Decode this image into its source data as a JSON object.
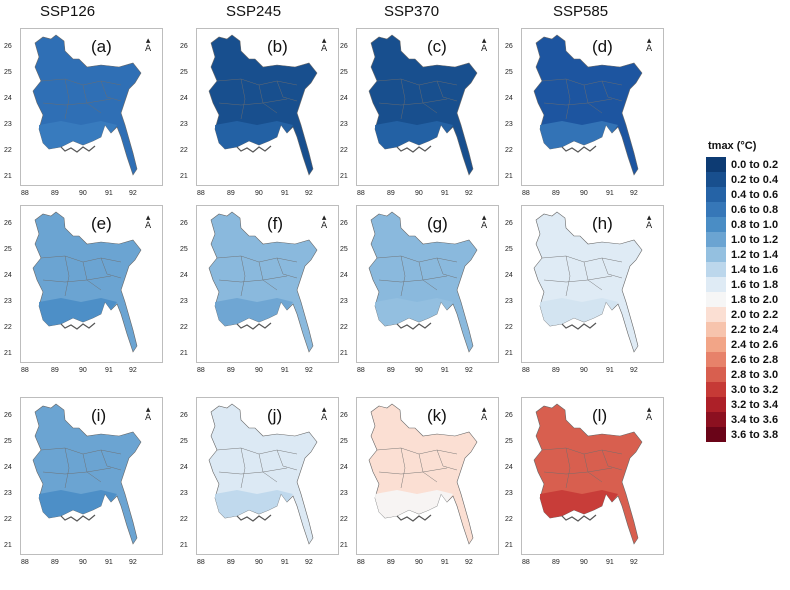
{
  "columns": [
    "SSP126",
    "SSP245",
    "SSP370",
    "SSP585"
  ],
  "y_ticks": [
    "26",
    "25",
    "24",
    "23",
    "22",
    "21"
  ],
  "x_ticks": [
    "88",
    "89",
    "90",
    "91",
    "92"
  ],
  "north_arrow": "A",
  "legend": {
    "title": "tmax (°C)",
    "entries": [
      {
        "label": "0.0 to 0.2",
        "color": "#0d3b73"
      },
      {
        "label": "0.2 to 0.4",
        "color": "#184f8e"
      },
      {
        "label": "0.4 to 0.6",
        "color": "#2563a6"
      },
      {
        "label": "0.6 to 0.8",
        "color": "#3677b8"
      },
      {
        "label": "0.8 to 1.0",
        "color": "#4a8dc5"
      },
      {
        "label": "1.0 to 1.2",
        "color": "#6ba4d2"
      },
      {
        "label": "1.2 to 1.4",
        "color": "#94c0e0"
      },
      {
        "label": "1.4 to 1.6",
        "color": "#bcd7ec"
      },
      {
        "label": "1.6 to 1.8",
        "color": "#dfebf5"
      },
      {
        "label": "1.8 to 2.0",
        "color": "#f6f6f6"
      },
      {
        "label": "2.0 to 2.2",
        "color": "#fbdfd3"
      },
      {
        "label": "2.2 to 2.4",
        "color": "#f7c4ad"
      },
      {
        "label": "2.4 to 2.6",
        "color": "#f2a587"
      },
      {
        "label": "2.6 to 2.8",
        "color": "#e7826a"
      },
      {
        "label": "2.8 to 3.0",
        "color": "#d85f4f"
      },
      {
        "label": "3.0 to 3.2",
        "color": "#c63a36"
      },
      {
        "label": "3.2 to 3.4",
        "color": "#ad2028"
      },
      {
        "label": "3.4 to 3.6",
        "color": "#8c1020"
      },
      {
        "label": "3.6 to 3.8",
        "color": "#6a0418"
      }
    ]
  },
  "panels": [
    {
      "label": "(a)",
      "scenario": "SSP126",
      "fill": "#2f6fb5",
      "south": "#3a7cbf"
    },
    {
      "label": "(b)",
      "scenario": "SSP245",
      "fill": "#184f8e",
      "south": "#2563a6"
    },
    {
      "label": "(c)",
      "scenario": "SSP370",
      "fill": "#184f8e",
      "south": "#2563a6"
    },
    {
      "label": "(d)",
      "scenario": "SSP585",
      "fill": "#1d55a0",
      "south": "#3677b8"
    },
    {
      "label": "(e)",
      "scenario": "SSP126",
      "fill": "#6ba4d2",
      "south": "#4a8dc5"
    },
    {
      "label": "(f)",
      "scenario": "SSP245",
      "fill": "#8ab9dd",
      "south": "#6ba4d2"
    },
    {
      "label": "(g)",
      "scenario": "SSP370",
      "fill": "#8ab9dd",
      "south": "#94c0e0"
    },
    {
      "label": "(h)",
      "scenario": "SSP585",
      "fill": "#dfebf5",
      "south": "#d2e3f1"
    },
    {
      "label": "(i)",
      "scenario": "SSP126",
      "fill": "#6ba4d2",
      "south": "#4a8dc5"
    },
    {
      "label": "(j)",
      "scenario": "SSP245",
      "fill": "#dce9f4",
      "south": "#bcd7ec"
    },
    {
      "label": "(k)",
      "scenario": "SSP370",
      "fill": "#fbdfd3",
      "south": "#f6f6f6"
    },
    {
      "label": "(l)",
      "scenario": "SSP585",
      "fill": "#d85f4f",
      "south": "#c63a36"
    }
  ]
}
